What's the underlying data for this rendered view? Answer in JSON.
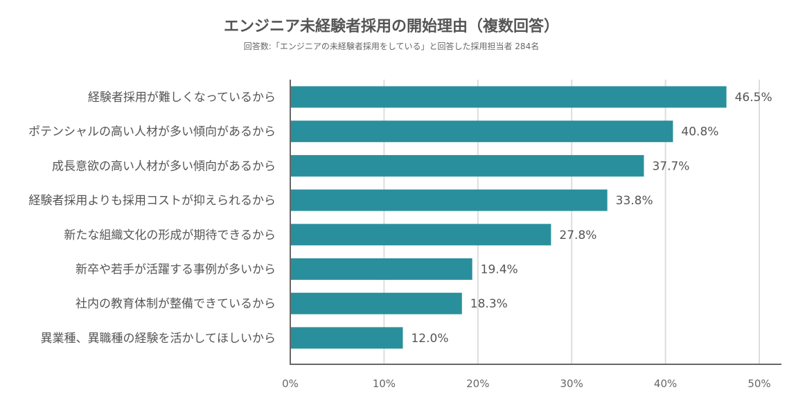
{
  "chart_data": {
    "type": "bar",
    "orientation": "horizontal",
    "title": "エンジニア未経験者採用の開始理由（複数回答）",
    "subtitle": "回答数:「エンジニアの未経験者採用をしている」と回答した採用担当者 284名",
    "categories": [
      "経験者採用が難しくなっているから",
      "ポテンシャルの高い人材が多い傾向があるから",
      "成長意欲の高い人材が多い傾向があるから",
      "経験者採用よりも採用コストが抑えられるから",
      "新たな組織文化の形成が期待できるから",
      "新卒や若手が活躍する事例が多いから",
      "社内の教育体制が整備できているから",
      "異業種、異職種の経験を活かしてほしいから"
    ],
    "values": [
      46.5,
      40.8,
      37.7,
      33.8,
      27.8,
      19.4,
      18.3,
      12.0
    ],
    "value_labels": [
      "46.5%",
      "40.8%",
      "37.7%",
      "33.8%",
      "27.8%",
      "19.4%",
      "18.3%",
      "12.0%"
    ],
    "xlim": [
      0,
      50
    ],
    "x_ticks": [
      0,
      10,
      20,
      30,
      40,
      50
    ],
    "x_tick_labels": [
      "0%",
      "10%",
      "20%",
      "30%",
      "40%",
      "50%"
    ],
    "grid": true,
    "bar_color": "#2a8f9c",
    "grid_color": "#dddddd",
    "axis_color": "#666666"
  }
}
